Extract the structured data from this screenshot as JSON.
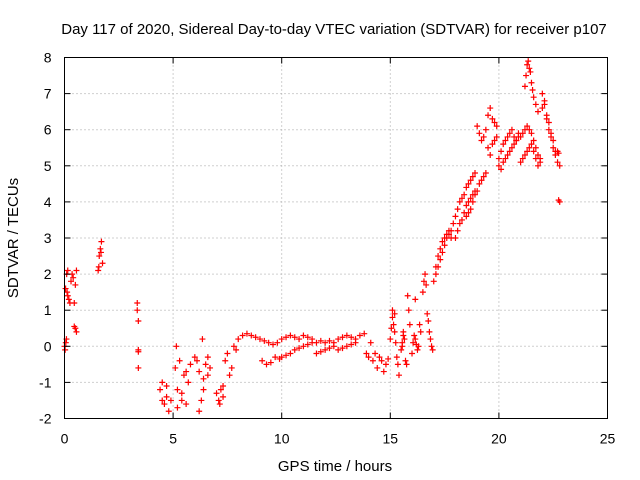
{
  "chart_data": {
    "type": "scatter",
    "title": "Day 117 of 2020, Sidereal Day-to-day VTEC variation (SDTVAR) for receiver p107",
    "xlabel": "GPS time / hours",
    "ylabel": "SDTVAR / TECUs",
    "xlim": [
      0,
      25
    ],
    "ylim": [
      -2,
      8
    ],
    "xticks": [
      0,
      5,
      10,
      15,
      20,
      25
    ],
    "yticks": [
      -2,
      -1,
      0,
      1,
      2,
      3,
      4,
      5,
      6,
      7,
      8
    ],
    "xtick_labels": [
      "0",
      "5",
      "10",
      "15",
      "20",
      "25"
    ],
    "ytick_labels": [
      "-2",
      "-1",
      "0",
      "1",
      "2",
      "3",
      "4",
      "5",
      "6",
      "7",
      "8"
    ],
    "grid": true,
    "marker": "+",
    "color": "#ff0000",
    "series": [
      {
        "name": "p107",
        "x": [
          0.0,
          0.05,
          0.1,
          0.15,
          0.2,
          0.25,
          0.3,
          0.35,
          0.4,
          0.45,
          0.5,
          0.55,
          0.03,
          0.06,
          0.09,
          0.12,
          0.15,
          0.45,
          0.5,
          0.55,
          1.55,
          1.6,
          1.65,
          1.7,
          1.75,
          1.58,
          1.68,
          3.35,
          3.35,
          3.4,
          3.4,
          3.4,
          3.4,
          4.4,
          4.5,
          4.6,
          4.7,
          4.8,
          4.9,
          4.5,
          4.7,
          5.1,
          5.2,
          5.3,
          5.4,
          5.5,
          5.6,
          5.7,
          5.8,
          5.2,
          5.4,
          5.6,
          5.15,
          6.0,
          6.1,
          6.2,
          6.3,
          6.4,
          6.5,
          6.6,
          6.7,
          6.2,
          6.4,
          6.6,
          6.35,
          7.0,
          7.1,
          7.2,
          7.3,
          7.4,
          7.5,
          7.6,
          7.7,
          7.8,
          7.9,
          7.15,
          7.3,
          8.0,
          8.2,
          8.4,
          8.6,
          8.8,
          9.0,
          9.2,
          9.4,
          9.6,
          9.8,
          9.1,
          9.3,
          9.5,
          9.7,
          9.9,
          10.0,
          10.2,
          10.4,
          10.6,
          10.8,
          11.0,
          11.2,
          11.4,
          11.6,
          11.8,
          10.0,
          10.2,
          10.4,
          10.6,
          10.8,
          11.0,
          11.2,
          11.4,
          11.6,
          11.8,
          12.0,
          12.2,
          12.4,
          12.6,
          12.8,
          13.0,
          13.2,
          13.4,
          13.6,
          13.8,
          12.0,
          12.2,
          12.4,
          12.6,
          12.8,
          13.0,
          13.2,
          13.4,
          13.9,
          14.0,
          14.1,
          14.2,
          14.3,
          14.4,
          14.5,
          14.6,
          14.7,
          14.8,
          14.9,
          15.0,
          15.05,
          15.1,
          15.15,
          15.2,
          15.25,
          15.3,
          15.35,
          15.4,
          15.1,
          15.2,
          15.5,
          15.55,
          15.6,
          15.65,
          15.7,
          15.75,
          15.8,
          15.85,
          15.9,
          15.55,
          15.6,
          16.0,
          16.05,
          16.1,
          16.15,
          16.2,
          16.25,
          16.3,
          16.35,
          16.4,
          16.15,
          16.5,
          16.55,
          16.6,
          16.65,
          16.7,
          16.75,
          16.8,
          16.85,
          16.9,
          16.95,
          17.0,
          17.1,
          17.2,
          17.3,
          17.4,
          17.5,
          17.6,
          17.7,
          17.8,
          17.9,
          17.1,
          17.2,
          17.3,
          17.4,
          17.5,
          17.6,
          17.7,
          17.8,
          18.0,
          18.1,
          18.2,
          18.3,
          18.4,
          18.5,
          18.6,
          18.7,
          18.8,
          18.9,
          18.0,
          18.1,
          18.2,
          18.3,
          18.4,
          18.5,
          18.6,
          18.7,
          18.8,
          18.9,
          18.5,
          18.6,
          18.7,
          18.8,
          18.9,
          19.0,
          19.1,
          19.2,
          19.3,
          19.4,
          19.0,
          19.1,
          19.2,
          19.3,
          19.4,
          19.5,
          19.6,
          19.7,
          19.8,
          19.9,
          19.5,
          19.6,
          19.7,
          19.8,
          19.9,
          20.0,
          20.1,
          20.2,
          20.3,
          20.4,
          20.5,
          20.6,
          20.7,
          20.8,
          20.9,
          20.0,
          20.1,
          20.2,
          20.3,
          20.4,
          20.5,
          20.6,
          20.7,
          20.8,
          20.9,
          21.0,
          21.1,
          21.2,
          21.3,
          21.4,
          21.5,
          21.6,
          21.7,
          21.8,
          21.9,
          21.0,
          21.1,
          21.2,
          21.3,
          21.4,
          21.5,
          21.6,
          21.7,
          21.8,
          21.9,
          21.2,
          21.25,
          21.3,
          21.35,
          21.4,
          21.45,
          21.5,
          21.55,
          21.6,
          21.7,
          21.8,
          22.0,
          22.1,
          22.2,
          22.3,
          22.4,
          22.5,
          22.6,
          22.7,
          22.8,
          22.0,
          22.1,
          22.2,
          22.3,
          22.4,
          22.5,
          22.6,
          22.7,
          22.75,
          22.8,
          22.75
        ],
        "y": [
          0.0,
          1.6,
          2.0,
          1.4,
          1.3,
          1.2,
          1.8,
          2.0,
          1.9,
          1.2,
          0.5,
          0.4,
          -0.1,
          0.1,
          0.2,
          1.5,
          2.1,
          0.55,
          1.7,
          2.1,
          2.1,
          2.5,
          2.7,
          2.9,
          2.3,
          2.2,
          2.6,
          1.2,
          1.0,
          0.7,
          -0.1,
          -0.6,
          -0.15,
          -1.2,
          -1.5,
          -1.6,
          -1.4,
          -1.8,
          -1.5,
          -1.0,
          -1.1,
          -0.6,
          -1.2,
          -0.4,
          -1.5,
          -0.8,
          -1.6,
          -1.0,
          -0.5,
          -1.7,
          -1.3,
          -0.7,
          0.0,
          -0.3,
          -0.4,
          -0.7,
          -1.5,
          -1.2,
          -0.5,
          -0.8,
          -0.6,
          -1.8,
          -0.9,
          -0.3,
          0.2,
          -1.3,
          -1.5,
          -1.2,
          -1.4,
          -0.4,
          -0.2,
          -0.8,
          -0.6,
          0.0,
          -0.1,
          -1.6,
          -1.1,
          0.2,
          0.3,
          0.35,
          0.3,
          0.25,
          0.2,
          0.15,
          0.1,
          0.05,
          0.1,
          -0.4,
          -0.5,
          -0.45,
          -0.3,
          -0.35,
          0.2,
          0.25,
          0.3,
          0.25,
          0.2,
          0.3,
          0.25,
          0.2,
          0.1,
          0.15,
          -0.3,
          -0.25,
          -0.2,
          -0.1,
          -0.05,
          0.0,
          0.05,
          0.1,
          -0.2,
          -0.15,
          0.1,
          0.15,
          0.1,
          0.2,
          0.25,
          0.3,
          0.25,
          0.2,
          0.3,
          0.35,
          -0.1,
          -0.05,
          0.0,
          -0.1,
          -0.05,
          0.0,
          0.05,
          0.1,
          -0.2,
          -0.3,
          0.1,
          -0.4,
          -0.2,
          -0.6,
          -0.3,
          -0.4,
          -0.7,
          -0.5,
          -0.35,
          0.2,
          0.5,
          0.8,
          0.6,
          0.4,
          0.1,
          -0.3,
          -0.5,
          -0.8,
          1.0,
          0.9,
          -0.1,
          0.1,
          0.3,
          0.2,
          -0.4,
          -0.5,
          1.4,
          1.0,
          0.6,
          0.0,
          0.4,
          -0.2,
          0.1,
          0.3,
          0.2,
          0.05,
          -0.1,
          0.0,
          0.6,
          0.4,
          1.3,
          1.5,
          1.8,
          2.0,
          1.7,
          0.9,
          0.7,
          0.4,
          0.2,
          0.0,
          -0.1,
          1.8,
          2.2,
          2.5,
          2.7,
          2.9,
          3.0,
          3.1,
          3.2,
          3.0,
          3.4,
          2.0,
          2.2,
          2.4,
          2.6,
          2.8,
          3.0,
          3.1,
          3.2,
          3.6,
          3.8,
          4.0,
          4.1,
          4.2,
          4.4,
          4.5,
          4.6,
          4.7,
          4.8,
          3.0,
          3.2,
          3.4,
          3.5,
          3.7,
          3.9,
          4.0,
          4.1,
          4.2,
          4.3,
          3.6,
          3.7,
          3.8,
          4.0,
          4.2,
          4.3,
          4.5,
          4.6,
          4.7,
          4.8,
          6.1,
          5.9,
          5.7,
          5.8,
          6.0,
          5.5,
          5.3,
          5.6,
          5.7,
          5.8,
          6.4,
          6.6,
          6.3,
          6.2,
          6.1,
          5.2,
          5.4,
          5.6,
          5.7,
          5.8,
          5.9,
          6.0,
          5.8,
          5.7,
          5.9,
          5.0,
          4.9,
          5.1,
          5.2,
          5.3,
          5.4,
          5.5,
          5.6,
          5.7,
          5.8,
          5.8,
          5.9,
          6.0,
          6.1,
          6.0,
          5.9,
          5.7,
          5.5,
          5.3,
          5.2,
          5.1,
          5.2,
          5.3,
          5.4,
          5.5,
          5.6,
          5.4,
          5.2,
          5.0,
          5.1,
          7.2,
          7.5,
          7.8,
          7.9,
          7.7,
          7.6,
          7.3,
          7.1,
          6.9,
          6.7,
          6.5,
          6.6,
          6.8,
          6.3,
          6.0,
          5.8,
          5.5,
          5.3,
          5.1,
          5.0,
          7.0,
          6.7,
          6.4,
          6.2,
          5.9,
          5.7,
          5.4,
          5.4,
          5.35,
          4.0,
          4.05
        ]
      }
    ]
  }
}
